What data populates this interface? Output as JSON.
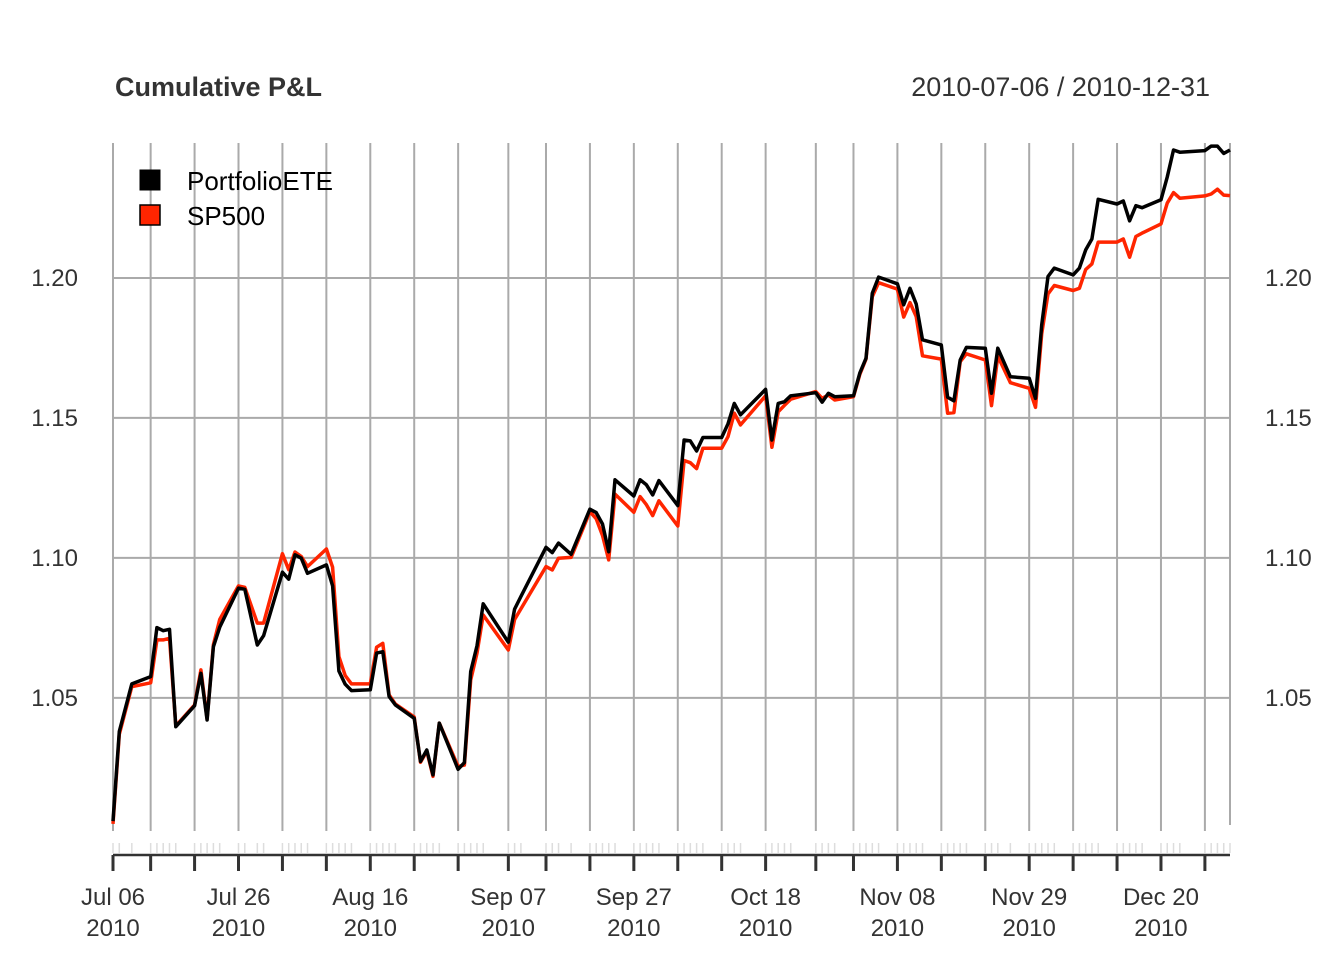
{
  "chart_data": {
    "type": "line",
    "title": "Cumulative P&L",
    "date_range": "2010-07-06 / 2010-12-31",
    "grid": true,
    "legend_placement": "top-left",
    "ylim": [
      1.0046,
      1.2482
    ],
    "xlim": [
      "2010-07-06",
      "2010-12-31"
    ],
    "y_ticks": [
      "1.05",
      "1.10",
      "1.15",
      "1.20"
    ],
    "x_tick_labels": [
      {
        "date": "2010-07-06",
        "line1": "Jul 06",
        "line2": "2010"
      },
      {
        "date": "2010-07-26",
        "line1": "Jul 26",
        "line2": "2010"
      },
      {
        "date": "2010-08-16",
        "line1": "Aug 16",
        "line2": "2010"
      },
      {
        "date": "2010-09-07",
        "line1": "Sep 07",
        "line2": "2010"
      },
      {
        "date": "2010-09-27",
        "line1": "Sep 27",
        "line2": "2010"
      },
      {
        "date": "2010-10-18",
        "line1": "Oct 18",
        "line2": "2010"
      },
      {
        "date": "2010-11-08",
        "line1": "Nov 08",
        "line2": "2010"
      },
      {
        "date": "2010-11-29",
        "line1": "Nov 29",
        "line2": "2010"
      },
      {
        "date": "2010-12-20",
        "line1": "Dec 20",
        "line2": "2010"
      }
    ],
    "x": [
      "2010-07-06",
      "2010-07-07",
      "2010-07-09",
      "2010-07-12",
      "2010-07-13",
      "2010-07-14",
      "2010-07-15",
      "2010-07-16",
      "2010-07-19",
      "2010-07-20",
      "2010-07-21",
      "2010-07-22",
      "2010-07-23",
      "2010-07-26",
      "2010-07-27",
      "2010-07-29",
      "2010-07-30",
      "2010-08-02",
      "2010-08-03",
      "2010-08-04",
      "2010-08-05",
      "2010-08-06",
      "2010-08-09",
      "2010-08-10",
      "2010-08-11",
      "2010-08-12",
      "2010-08-13",
      "2010-08-16",
      "2010-08-17",
      "2010-08-18",
      "2010-08-19",
      "2010-08-20",
      "2010-08-23",
      "2010-08-24",
      "2010-08-25",
      "2010-08-26",
      "2010-08-27",
      "2010-08-30",
      "2010-08-31",
      "2010-09-01",
      "2010-09-02",
      "2010-09-03",
      "2010-09-07",
      "2010-09-08",
      "2010-09-09",
      "2010-09-13",
      "2010-09-14",
      "2010-09-15",
      "2010-09-17",
      "2010-09-20",
      "2010-09-21",
      "2010-09-22",
      "2010-09-23",
      "2010-09-24",
      "2010-09-27",
      "2010-09-28",
      "2010-09-29",
      "2010-09-30",
      "2010-10-01",
      "2010-10-04",
      "2010-10-05",
      "2010-10-06",
      "2010-10-07",
      "2010-10-08",
      "2010-10-11",
      "2010-10-12",
      "2010-10-13",
      "2010-10-14",
      "2010-10-18",
      "2010-10-19",
      "2010-10-20",
      "2010-10-21",
      "2010-10-22",
      "2010-10-26",
      "2010-10-27",
      "2010-10-28",
      "2010-10-29",
      "2010-11-01",
      "2010-11-02",
      "2010-11-03",
      "2010-11-04",
      "2010-11-05",
      "2010-11-08",
      "2010-11-09",
      "2010-11-10",
      "2010-11-11",
      "2010-11-12",
      "2010-11-15",
      "2010-11-16",
      "2010-11-17",
      "2010-11-18",
      "2010-11-19",
      "2010-11-22",
      "2010-11-23",
      "2010-11-24",
      "2010-11-26",
      "2010-11-29",
      "2010-11-30",
      "2010-12-01",
      "2010-12-02",
      "2010-12-03",
      "2010-12-06",
      "2010-12-07",
      "2010-12-08",
      "2010-12-09",
      "2010-12-10",
      "2010-12-13",
      "2010-12-14",
      "2010-12-15",
      "2010-12-16",
      "2010-12-17",
      "2010-12-20",
      "2010-12-21",
      "2010-12-22",
      "2010-12-23",
      "2010-12-27",
      "2010-12-28",
      "2010-12-29",
      "2010-12-30",
      "2010-12-31"
    ],
    "series": [
      {
        "name": "PortfolioETE",
        "color": "#000000",
        "values": [
          1.006,
          1.038,
          1.055,
          1.0576,
          1.0751,
          1.074,
          1.0745,
          1.0397,
          1.0472,
          1.0588,
          1.0421,
          1.0683,
          1.0752,
          1.0892,
          1.0888,
          1.0689,
          1.0722,
          1.0949,
          1.0924,
          1.1011,
          1.0999,
          1.0945,
          1.0975,
          1.09,
          1.0596,
          1.0549,
          1.0526,
          1.0529,
          1.066,
          1.0665,
          1.0505,
          1.0475,
          1.0427,
          1.0273,
          1.0314,
          1.0225,
          1.041,
          1.0245,
          1.0269,
          1.0594,
          1.0686,
          1.0836,
          1.0699,
          1.0817,
          1.0862,
          1.1038,
          1.1019,
          1.1053,
          1.1013,
          1.1174,
          1.1162,
          1.1121,
          1.1022,
          1.1279,
          1.1221,
          1.1279,
          1.1261,
          1.1225,
          1.1276,
          1.1187,
          1.1421,
          1.1418,
          1.1382,
          1.143,
          1.143,
          1.1479,
          1.1552,
          1.1511,
          1.1602,
          1.1421,
          1.1552,
          1.1558,
          1.1579,
          1.159,
          1.1556,
          1.1588,
          1.1576,
          1.1579,
          1.166,
          1.1713,
          1.1945,
          1.2003,
          1.1979,
          1.1904,
          1.1963,
          1.1907,
          1.1779,
          1.1761,
          1.1574,
          1.1561,
          1.1707,
          1.1752,
          1.1749,
          1.1588,
          1.1749,
          1.1647,
          1.1642,
          1.157,
          1.1832,
          1.2005,
          1.2035,
          1.2011,
          1.2035,
          1.21,
          1.2139,
          1.2281,
          1.2264,
          1.2275,
          1.2204,
          1.2258,
          1.2251,
          1.2279,
          1.236,
          1.2457,
          1.2449,
          1.2455,
          1.2471,
          1.2471,
          1.2445,
          1.2457
        ]
      },
      {
        "name": "SP500",
        "color": "#ff2500",
        "values": [
          1.005,
          1.037,
          1.054,
          1.0554,
          1.0707,
          1.0707,
          1.0713,
          1.04,
          1.0475,
          1.06,
          1.0425,
          1.069,
          1.078,
          1.09,
          1.0895,
          1.0767,
          1.0767,
          1.1015,
          1.0958,
          1.1021,
          1.1005,
          1.0969,
          1.1032,
          1.0967,
          1.0648,
          1.058,
          1.055,
          1.055,
          1.0681,
          1.0695,
          1.0511,
          1.0478,
          1.0432,
          1.027,
          1.031,
          1.022,
          1.041,
          1.0255,
          1.026,
          1.0564,
          1.066,
          1.0796,
          1.0671,
          1.078,
          1.0818,
          1.0969,
          1.0957,
          1.0999,
          1.1002,
          1.1165,
          1.114,
          1.108,
          1.0993,
          1.1228,
          1.1163,
          1.1219,
          1.119,
          1.1151,
          1.1204,
          1.1114,
          1.1348,
          1.134,
          1.1319,
          1.1392,
          1.1392,
          1.1433,
          1.1517,
          1.1475,
          1.1579,
          1.1395,
          1.1522,
          1.1545,
          1.1567,
          1.1594,
          1.157,
          1.1582,
          1.1564,
          1.1576,
          1.1655,
          1.171,
          1.1933,
          1.1983,
          1.196,
          1.186,
          1.1912,
          1.1862,
          1.1722,
          1.171,
          1.1517,
          1.1519,
          1.1701,
          1.1729,
          1.1707,
          1.1544,
          1.1721,
          1.1626,
          1.1606,
          1.1538,
          1.18,
          1.1943,
          1.1973,
          1.1955,
          1.1963,
          1.203,
          1.205,
          1.2128,
          1.2128,
          1.2139,
          1.2074,
          1.2148,
          1.216,
          1.2193,
          1.2267,
          1.2305,
          1.2285,
          1.2293,
          1.23,
          1.2317,
          1.2296,
          1.2294
        ]
      }
    ],
    "legend": [
      {
        "label": "PortfolioETE",
        "color": "#000000"
      },
      {
        "label": "SP500",
        "color": "#ff2500"
      }
    ],
    "colors": {
      "grid": "#aaaaaa",
      "axis": "#333333",
      "minor_tick": "#dddddd"
    }
  }
}
